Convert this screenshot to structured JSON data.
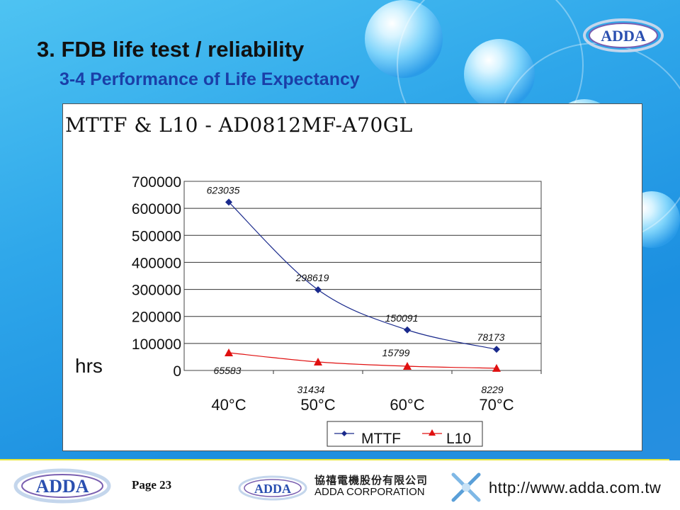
{
  "slide": {
    "title": "3. FDB life test / reliability",
    "subtitle": "3-4 Performance of Life Expectancy",
    "logo_text": "ADDA",
    "page_label": "Page 23"
  },
  "footer": {
    "logo_left": "ADDA",
    "logo_mid": "ADDA",
    "company_cn": "協禧電機股份有限公司",
    "company_en": "ADDA CORPORATION",
    "url": "http://www.adda.com.tw"
  },
  "colors": {
    "mttf": "#1a2a8c",
    "l10": "#e01010",
    "title_blue": "#1a3fa8"
  },
  "chart_data": {
    "type": "line",
    "title": "MTTF & L10 - AD0812MF-A70GL",
    "ylabel": "hrs",
    "xlabel": "",
    "categories": [
      "40°C",
      "50°C",
      "60°C",
      "70°C"
    ],
    "ylim": [
      0,
      700000
    ],
    "yticks": [
      "0",
      "100000",
      "200000",
      "300000",
      "400000",
      "500000",
      "600000",
      "700000"
    ],
    "grid": true,
    "legend_position": "bottom",
    "series": [
      {
        "name": "MTTF",
        "values": [
          623035,
          298619,
          150091,
          78173
        ],
        "labels": [
          "623035",
          "298619",
          "150091",
          "78173"
        ],
        "marker": "diamond"
      },
      {
        "name": "L10",
        "values": [
          65583,
          31434,
          15799,
          8229
        ],
        "labels": [
          "65583",
          "31434",
          "15799",
          "8229"
        ],
        "marker": "triangle"
      }
    ]
  }
}
